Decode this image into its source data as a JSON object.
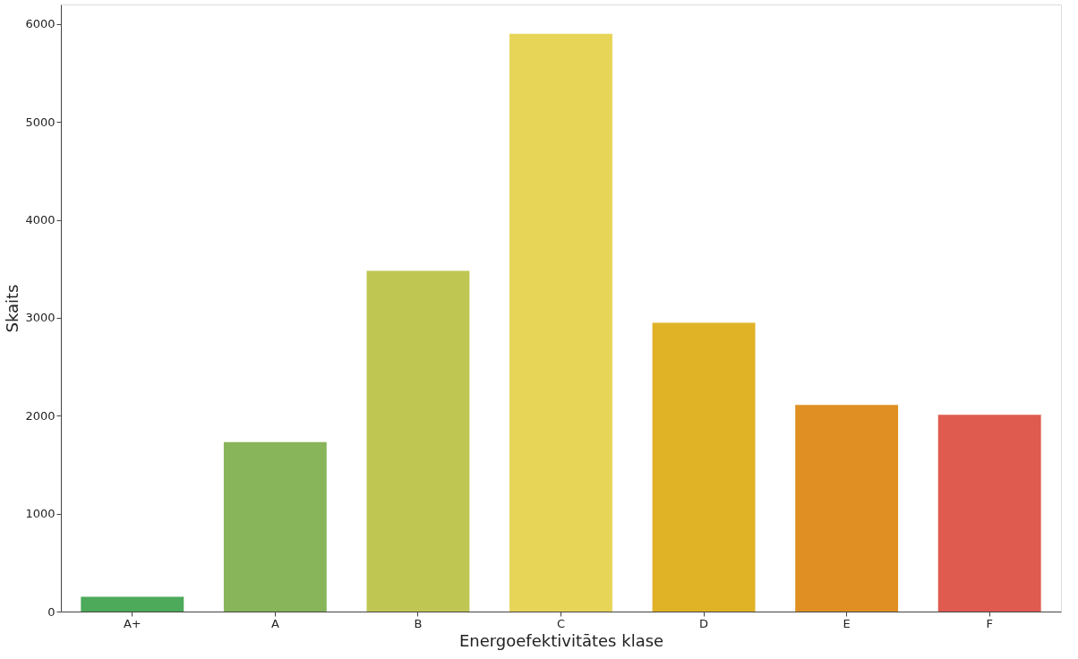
{
  "chart_data": {
    "type": "bar",
    "xlabel": "Energoefektivitātes klase",
    "ylabel": "Skaits",
    "categories": [
      "A+",
      "A",
      "B",
      "C",
      "D",
      "E",
      "F"
    ],
    "values": [
      150,
      1730,
      3480,
      5900,
      2950,
      2110,
      2010
    ],
    "colors": [
      "#4caa5a",
      "#88b45a",
      "#bfc752",
      "#e7d558",
      "#e0b226",
      "#e09022",
      "#df5a4f"
    ],
    "ylim": [
      0,
      6200
    ],
    "yticks": [
      0,
      1000,
      2000,
      3000,
      4000,
      5000,
      6000
    ],
    "grid": false,
    "legend": false
  }
}
